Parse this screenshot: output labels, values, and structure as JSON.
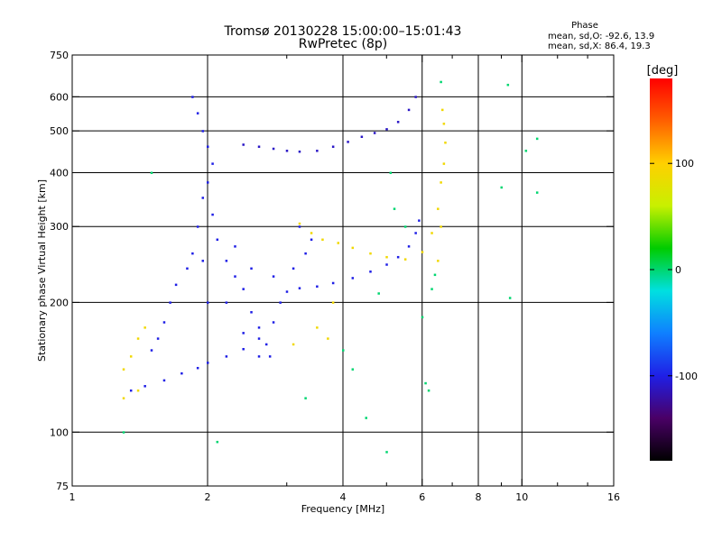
{
  "chart_data": {
    "type": "scatter",
    "title": "Tromsø 20130228 15:00:00–15:01:43",
    "subtitle": "RwPretec (8p)",
    "xlabel": "Frequency [MHz]",
    "ylabel": "Stationary phase Virtual Height [km]",
    "x_scale": "log",
    "y_scale": "log",
    "xlim": [
      1,
      16
    ],
    "ylim": [
      75,
      750
    ],
    "x_ticks": [
      1,
      2,
      4,
      6,
      8,
      10,
      16
    ],
    "x_tick_labels": [
      "1",
      "2",
      "4",
      "6",
      "8",
      "10",
      "16"
    ],
    "x_minor_ticks": [
      3,
      5,
      7,
      9,
      12,
      14
    ],
    "y_ticks": [
      75,
      100,
      200,
      300,
      400,
      500,
      600,
      750
    ],
    "y_tick_labels": [
      "75",
      "100",
      "200",
      "300",
      "400",
      "500",
      "600",
      "750"
    ],
    "grid_x": [
      2,
      4,
      6,
      8,
      10
    ],
    "grid_y": [
      100,
      200,
      300,
      400,
      500,
      600
    ],
    "stats": {
      "heading": "Phase",
      "line_o": "mean, sd,O: -92.6, 13.9",
      "line_x": "mean, sd,X: 86.4, 19.3"
    },
    "colorbar": {
      "label": "[deg]",
      "range": [
        -180,
        180
      ],
      "ticks": [
        100,
        0,
        -100
      ],
      "tick_labels": [
        "100",
        "0",
        "-100"
      ],
      "colors": [
        "#000000",
        "#4a0066",
        "#1f1fe6",
        "#0f7fff",
        "#00e0e0",
        "#00cc00",
        "#c8f000",
        "#ffd000",
        "#ff6000",
        "#ff0000"
      ]
    },
    "series": [
      {
        "kind": "O-mode trace F",
        "phase_deg": -100,
        "points": [
          [
            1.35,
            125
          ],
          [
            1.45,
            128
          ],
          [
            1.6,
            132
          ],
          [
            1.75,
            137
          ],
          [
            1.9,
            141
          ],
          [
            2.0,
            145
          ],
          [
            2.2,
            150
          ],
          [
            2.4,
            156
          ],
          [
            2.6,
            165
          ],
          [
            2.8,
            180
          ],
          [
            2.9,
            200
          ],
          [
            3.0,
            212
          ],
          [
            3.2,
            216
          ],
          [
            3.5,
            218
          ],
          [
            3.8,
            222
          ],
          [
            4.2,
            228
          ],
          [
            4.6,
            236
          ],
          [
            5.0,
            245
          ],
          [
            5.3,
            255
          ],
          [
            5.6,
            270
          ],
          [
            5.8,
            290
          ],
          [
            5.9,
            310
          ]
        ]
      },
      {
        "kind": "O-mode spread F",
        "phase_deg": -100,
        "points": [
          [
            1.85,
            600
          ],
          [
            1.9,
            550
          ],
          [
            1.95,
            500
          ],
          [
            2.0,
            460
          ],
          [
            2.05,
            420
          ],
          [
            2.0,
            380
          ],
          [
            1.95,
            350
          ],
          [
            2.05,
            320
          ],
          [
            1.9,
            300
          ],
          [
            2.1,
            280
          ],
          [
            1.85,
            260
          ],
          [
            2.2,
            250
          ],
          [
            1.8,
            240
          ],
          [
            2.3,
            230
          ],
          [
            1.7,
            220
          ],
          [
            2.4,
            215
          ],
          [
            1.65,
            200
          ],
          [
            2.5,
            190
          ],
          [
            1.6,
            180
          ],
          [
            2.6,
            175
          ],
          [
            1.55,
            165
          ],
          [
            2.7,
            160
          ],
          [
            1.5,
            155
          ],
          [
            2.75,
            150
          ],
          [
            2.3,
            270
          ],
          [
            2.5,
            240
          ],
          [
            2.8,
            230
          ],
          [
            3.1,
            240
          ],
          [
            3.3,
            260
          ],
          [
            3.4,
            280
          ],
          [
            3.2,
            300
          ],
          [
            2.2,
            200
          ],
          [
            2.4,
            170
          ],
          [
            2.6,
            150
          ],
          [
            1.95,
            250
          ],
          [
            2.0,
            200
          ]
        ]
      },
      {
        "kind": "O-mode upper trace",
        "phase_deg": -110,
        "points": [
          [
            2.4,
            465
          ],
          [
            2.6,
            460
          ],
          [
            2.8,
            455
          ],
          [
            3.0,
            450
          ],
          [
            3.2,
            448
          ],
          [
            3.5,
            450
          ],
          [
            3.8,
            460
          ],
          [
            4.1,
            472
          ],
          [
            4.4,
            485
          ],
          [
            4.7,
            495
          ],
          [
            5.0,
            505
          ],
          [
            5.3,
            525
          ],
          [
            5.6,
            560
          ],
          [
            5.8,
            600
          ]
        ]
      },
      {
        "kind": "X-mode trace",
        "phase_deg": 90,
        "points": [
          [
            1.3,
            140
          ],
          [
            1.35,
            150
          ],
          [
            1.4,
            165
          ],
          [
            1.45,
            175
          ],
          [
            1.4,
            125
          ],
          [
            1.3,
            120
          ],
          [
            3.2,
            305
          ],
          [
            3.4,
            290
          ],
          [
            3.6,
            280
          ],
          [
            3.9,
            275
          ],
          [
            4.2,
            268
          ],
          [
            4.6,
            260
          ],
          [
            5.0,
            255
          ],
          [
            5.5,
            252
          ],
          [
            6.0,
            262
          ],
          [
            6.3,
            290
          ],
          [
            6.5,
            330
          ],
          [
            6.6,
            380
          ],
          [
            6.7,
            420
          ],
          [
            6.75,
            470
          ],
          [
            6.7,
            520
          ],
          [
            6.65,
            560
          ],
          [
            6.5,
            250
          ],
          [
            6.6,
            300
          ],
          [
            3.1,
            160
          ],
          [
            3.5,
            175
          ],
          [
            3.7,
            165
          ],
          [
            3.8,
            200
          ]
        ]
      },
      {
        "kind": "scattered echoes",
        "phase_deg": 0,
        "points": [
          [
            1.5,
            400
          ],
          [
            9.0,
            370
          ],
          [
            9.3,
            640
          ],
          [
            10.2,
            450
          ],
          [
            10.8,
            480
          ],
          [
            10.8,
            360
          ],
          [
            9.4,
            205
          ],
          [
            6.0,
            185
          ],
          [
            6.1,
            130
          ],
          [
            6.2,
            125
          ],
          [
            5.0,
            90
          ],
          [
            4.5,
            108
          ],
          [
            3.3,
            120
          ],
          [
            2.1,
            95
          ],
          [
            1.3,
            100
          ],
          [
            4.0,
            155
          ],
          [
            4.2,
            140
          ],
          [
            5.1,
            400
          ],
          [
            5.2,
            330
          ],
          [
            6.3,
            215
          ],
          [
            6.4,
            232
          ],
          [
            6.6,
            650
          ],
          [
            4.8,
            210
          ],
          [
            5.5,
            300
          ]
        ]
      }
    ]
  }
}
